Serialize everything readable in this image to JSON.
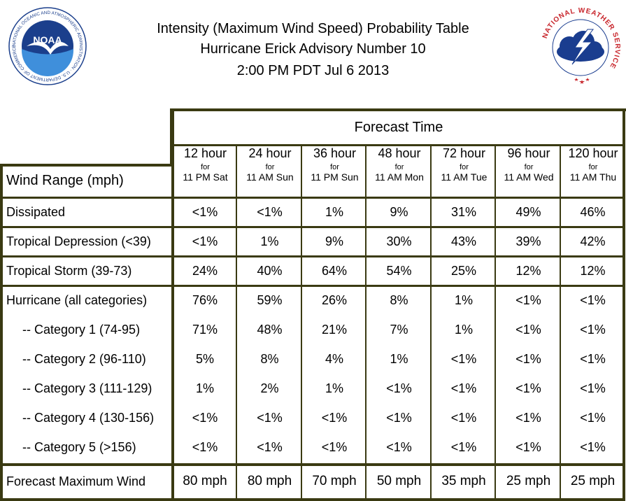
{
  "header": {
    "title_line1": "Intensity (Maximum Wind Speed) Probability Table",
    "title_line2": "Hurricane Erick Advisory Number 10",
    "title_line3": "2:00 PM PDT Jul 6 2013"
  },
  "logos": {
    "noaa_text": "NOAA",
    "noaa_ring": "NATIONAL OCEANIC AND ATMOSPHERIC ADMINISTRATION · U.S. DEPARTMENT OF COMMERCE",
    "nws_ring": "NATIONAL WEATHER SERVICE"
  },
  "table": {
    "forecast_time_label": "Forecast Time",
    "wind_range_label": "Wind Range (mph)",
    "for_label": "for",
    "columns": [
      {
        "hour": "12 hour",
        "time": "11 PM Sat"
      },
      {
        "hour": "24 hour",
        "time": "11 AM Sun"
      },
      {
        "hour": "36 hour",
        "time": "11 PM Sun"
      },
      {
        "hour": "48 hour",
        "time": "11 AM Mon"
      },
      {
        "hour": "72 hour",
        "time": "11 AM Tue"
      },
      {
        "hour": "96 hour",
        "time": "11 AM Wed"
      },
      {
        "hour": "120 hour",
        "time": "11 AM Thu"
      }
    ],
    "rows": [
      {
        "label": "Dissipated",
        "values": [
          "<1%",
          "<1%",
          "1%",
          "9%",
          "31%",
          "49%",
          "46%"
        ]
      },
      {
        "label": "Tropical Depression (<39)",
        "values": [
          "<1%",
          "1%",
          "9%",
          "30%",
          "43%",
          "39%",
          "42%"
        ]
      },
      {
        "label": "Tropical Storm (39-73)",
        "values": [
          "24%",
          "40%",
          "64%",
          "54%",
          "25%",
          "12%",
          "12%"
        ]
      },
      {
        "label": "Hurricane (all categories)",
        "values": [
          "76%",
          "59%",
          "26%",
          "8%",
          "1%",
          "<1%",
          "<1%"
        ]
      },
      {
        "label": "-- Category 1 (74-95)",
        "values": [
          "71%",
          "48%",
          "21%",
          "7%",
          "1%",
          "<1%",
          "<1%"
        ]
      },
      {
        "label": "-- Category 2 (96-110)",
        "values": [
          "5%",
          "8%",
          "4%",
          "1%",
          "<1%",
          "<1%",
          "<1%"
        ]
      },
      {
        "label": "-- Category 3 (111-129)",
        "values": [
          "1%",
          "2%",
          "1%",
          "<1%",
          "<1%",
          "<1%",
          "<1%"
        ]
      },
      {
        "label": "-- Category 4 (130-156)",
        "values": [
          "<1%",
          "<1%",
          "<1%",
          "<1%",
          "<1%",
          "<1%",
          "<1%"
        ]
      },
      {
        "label": "-- Category 5 (>156)",
        "values": [
          "<1%",
          "<1%",
          "<1%",
          "<1%",
          "<1%",
          "<1%",
          "<1%"
        ]
      }
    ],
    "max_wind": {
      "label": "Forecast Maximum Wind",
      "values": [
        "80 mph",
        "80 mph",
        "70 mph",
        "50 mph",
        "35 mph",
        "25 mph",
        "25 mph"
      ]
    }
  },
  "colors": {
    "border": "#3a3a12",
    "noaa_blue": "#1b3f8c",
    "noaa_light": "#3f8fdb",
    "nws_red": "#c8262c",
    "nws_blue": "#1a3d8f"
  }
}
